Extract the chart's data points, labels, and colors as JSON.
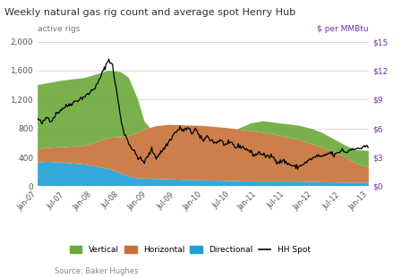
{
  "title": "Weekly natural gas rig count and average spot Henry Hub",
  "left_label": "active rigs",
  "right_label": "$ per MMBtu",
  "source": "Source: Baker Hughes",
  "ylim_left": [
    0,
    2000
  ],
  "ylim_right": [
    0,
    15
  ],
  "yticks_left": [
    0,
    400,
    800,
    1200,
    1600,
    2000
  ],
  "ytick_labels_left": [
    "0",
    "400",
    "800",
    "1,200",
    "1,600",
    "2,000"
  ],
  "yticks_right": [
    0,
    3,
    6,
    9,
    12,
    15
  ],
  "ytick_labels_right": [
    "$0",
    "$3",
    "$6",
    "$9",
    "$12",
    "$15"
  ],
  "colors": {
    "vertical": "#6aaa3a",
    "horizontal": "#c87137",
    "directional": "#1ea0d5",
    "hh_spot": "#000000",
    "grid": "#cccccc",
    "title": "#333333",
    "label": "#888888"
  },
  "xtick_labels": [
    "Jan-07",
    "Jul-07",
    "Jan-08",
    "Jul-08",
    "Jan-09",
    "Jul-09",
    "Jan-10",
    "Jul-10",
    "Jan-11",
    "Jul-11",
    "Jan-12",
    "Jul-12",
    "Jan-13"
  ],
  "n_points": 364
}
